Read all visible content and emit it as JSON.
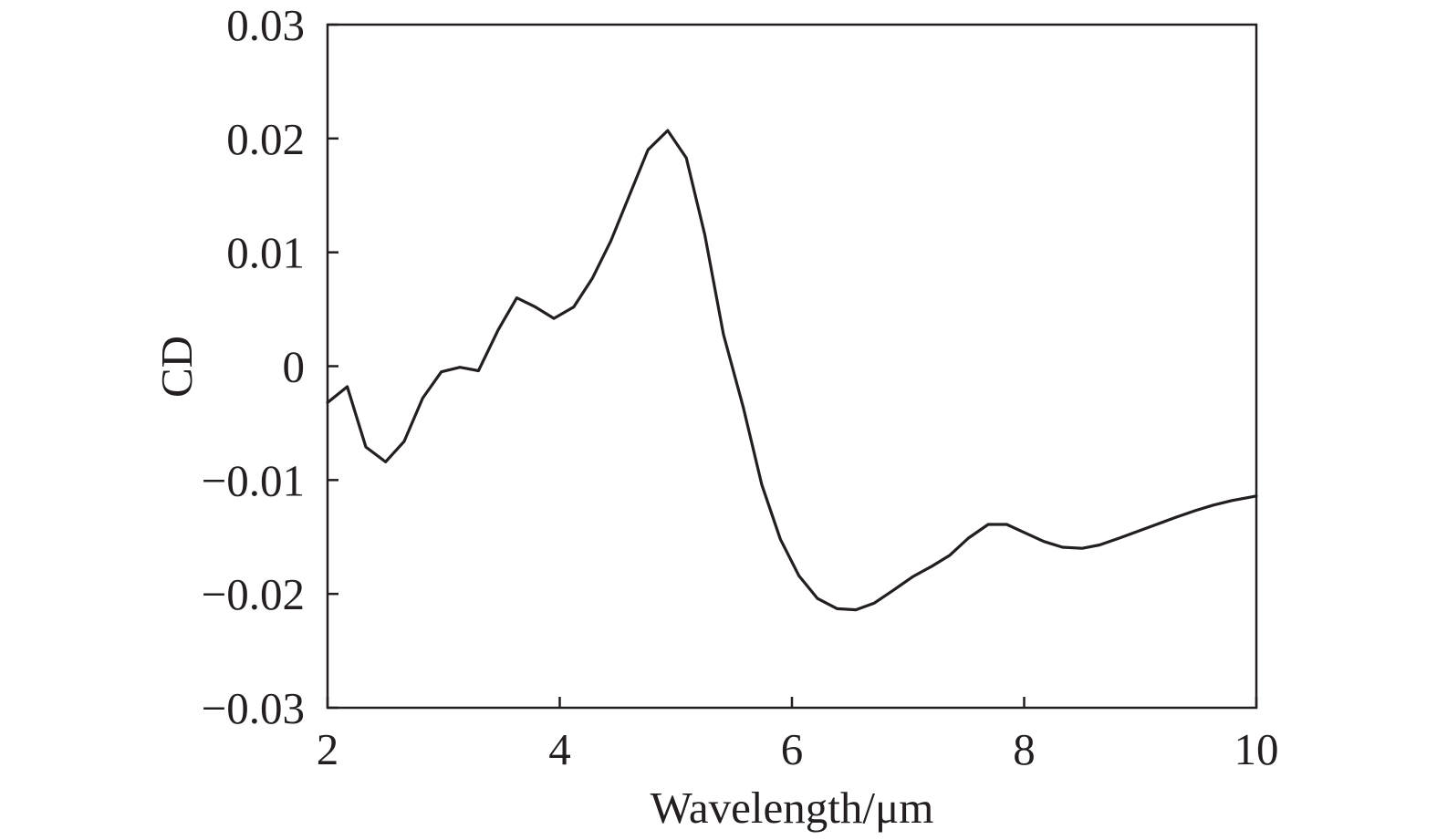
{
  "chart_data": {
    "type": "line",
    "title": "",
    "xlabel": "Wavelength/μm",
    "ylabel": "CD",
    "xlim": [
      2,
      10
    ],
    "ylim": [
      -0.03,
      0.03
    ],
    "grid": false,
    "line_color": "#231f20",
    "x_ticks": [
      {
        "value": 2,
        "label": "2"
      },
      {
        "value": 4,
        "label": "4"
      },
      {
        "value": 6,
        "label": "6"
      },
      {
        "value": 8,
        "label": "8"
      },
      {
        "value": 10,
        "label": "10"
      }
    ],
    "y_ticks": [
      {
        "value": 0.03,
        "label": "0.03"
      },
      {
        "value": 0.02,
        "label": "0.02"
      },
      {
        "value": 0.01,
        "label": "0.01"
      },
      {
        "value": 0,
        "label": "0"
      },
      {
        "value": -0.01,
        "label": "−0.01"
      },
      {
        "value": -0.02,
        "label": "−0.02"
      },
      {
        "value": -0.03,
        "label": "−0.03"
      }
    ],
    "series": [
      {
        "x": [
          2.0,
          2.17,
          2.33,
          2.5,
          2.66,
          2.82,
          2.98,
          3.14,
          3.3,
          3.47,
          3.63,
          3.79,
          3.95,
          4.12,
          4.28,
          4.44,
          4.6,
          4.76,
          4.93,
          5.09,
          5.25,
          5.41,
          5.58,
          5.74,
          5.9,
          6.06,
          6.22,
          6.39,
          6.55,
          6.71,
          6.87,
          7.04,
          7.2,
          7.36,
          7.52,
          7.69,
          7.85,
          8.0,
          8.17,
          8.33,
          8.5,
          8.65,
          8.82,
          8.98,
          9.14,
          9.3,
          9.47,
          9.63,
          9.79,
          9.95,
          10.0
        ],
        "y": [
          -0.0032,
          -0.0018,
          -0.0071,
          -0.0084,
          -0.0066,
          -0.0028,
          -0.0005,
          -0.0001,
          -0.0004,
          0.0032,
          0.006,
          0.0052,
          0.0042,
          0.0052,
          0.0077,
          0.011,
          0.015,
          0.019,
          0.0207,
          0.0183,
          0.0115,
          0.0028,
          -0.0036,
          -0.0104,
          -0.0152,
          -0.0184,
          -0.0204,
          -0.0213,
          -0.0214,
          -0.0208,
          -0.0197,
          -0.0185,
          -0.0176,
          -0.0166,
          -0.0151,
          -0.0139,
          -0.0139,
          -0.0146,
          -0.0154,
          -0.0159,
          -0.016,
          -0.0157,
          -0.0151,
          -0.0145,
          -0.0139,
          -0.0133,
          -0.0127,
          -0.0122,
          -0.0118,
          -0.0115,
          -0.0114
        ]
      }
    ]
  }
}
